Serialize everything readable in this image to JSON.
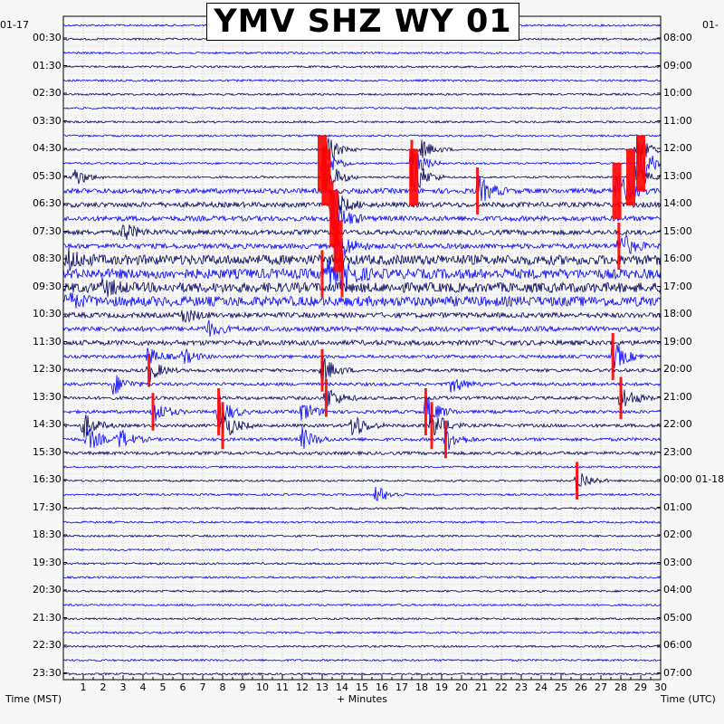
{
  "chart_data": {
    "type": "line",
    "title": "YMV SHZ WY 01",
    "date_left": "01-17",
    "date_right_top": "01-",
    "date_rollover": "01-18",
    "xlabel_left": "Time (MST)",
    "xlabel_center": "+ Minutes",
    "xlabel_right": "Time (UTC)",
    "xlim": [
      0,
      30
    ],
    "x_ticks": [
      "1",
      "2",
      "3",
      "4",
      "5",
      "6",
      "7",
      "8",
      "9",
      "10",
      "11",
      "12",
      "13",
      "14",
      "15",
      "16",
      "17",
      "18",
      "19",
      "20",
      "21",
      "22",
      "23",
      "24",
      "25",
      "26",
      "27",
      "28",
      "29",
      "30"
    ],
    "rows_per_hour": 2,
    "row_minutes": 30,
    "left_labels": [
      "00:30",
      "01:30",
      "02:30",
      "03:30",
      "04:30",
      "05:30",
      "06:30",
      "07:30",
      "08:30",
      "09:30",
      "10:30",
      "11:30",
      "12:30",
      "13:30",
      "14:30",
      "15:30",
      "16:30",
      "17:30",
      "18:30",
      "19:30",
      "20:30",
      "21:30",
      "22:30",
      "23:30"
    ],
    "right_labels": [
      "08:00",
      "09:00",
      "10:00",
      "11:00",
      "12:00",
      "13:00",
      "14:00",
      "15:00",
      "16:00",
      "17:00",
      "18:00",
      "19:00",
      "20:00",
      "21:00",
      "22:00",
      "23:00",
      "00:00",
      "01:00",
      "02:00",
      "03:00",
      "04:00",
      "05:00",
      "06:00",
      "07:00"
    ],
    "trace_colors": [
      "#0000ff",
      "#00005a"
    ],
    "clip_color": "#ff0000",
    "grid": "dotted",
    "events": [
      {
        "row": 9,
        "minute": 13.2,
        "amp": 0.9
      },
      {
        "row": 9,
        "minute": 18.0,
        "amp": 0.6
      },
      {
        "row": 9,
        "minute": 28.8,
        "amp": 1.0
      },
      {
        "row": 10,
        "minute": 13.0,
        "amp": 1.2,
        "clipped": true
      },
      {
        "row": 10,
        "minute": 17.5,
        "amp": 1.0,
        "clipped": true
      },
      {
        "row": 10,
        "minute": 29.0,
        "amp": 1.2,
        "clipped": true
      },
      {
        "row": 11,
        "minute": 0.5,
        "amp": 0.7
      },
      {
        "row": 11,
        "minute": 13.2,
        "amp": 1.2,
        "clipped": true
      },
      {
        "row": 11,
        "minute": 17.6,
        "amp": 1.2,
        "clipped": true
      },
      {
        "row": 11,
        "minute": 28.5,
        "amp": 1.2,
        "clipped": true
      },
      {
        "row": 12,
        "minute": 20.8,
        "amp": 1.0,
        "clipped": true
      },
      {
        "row": 12,
        "minute": 27.8,
        "amp": 1.2,
        "clipped": true
      },
      {
        "row": 13,
        "minute": 13.5,
        "amp": 1.0,
        "clipped": true
      },
      {
        "row": 14,
        "minute": 13.6,
        "amp": 1.2,
        "clipped": true
      },
      {
        "row": 15,
        "minute": 3.0,
        "amp": 0.6
      },
      {
        "row": 16,
        "minute": 27.9,
        "amp": 1.0,
        "clipped": true
      },
      {
        "row": 16,
        "minute": 13.8,
        "amp": 1.1,
        "clipped": true
      },
      {
        "row": 17,
        "minute": 0.2,
        "amp": 0.6
      },
      {
        "row": 18,
        "minute": 13.0,
        "amp": 1.0,
        "clipped": true
      },
      {
        "row": 18,
        "minute": 14.0,
        "amp": 1.0,
        "clipped": true
      },
      {
        "row": 19,
        "minute": 2.0,
        "amp": 0.5
      },
      {
        "row": 20,
        "minute": 0.1,
        "amp": 0.5
      },
      {
        "row": 21,
        "minute": 6.0,
        "amp": 0.5
      },
      {
        "row": 22,
        "minute": 7.2,
        "amp": 0.5
      },
      {
        "row": 24,
        "minute": 4.2,
        "amp": 0.6
      },
      {
        "row": 24,
        "minute": 6.0,
        "amp": 0.5
      },
      {
        "row": 24,
        "minute": 27.6,
        "amp": 1.0,
        "clipped": true
      },
      {
        "row": 25,
        "minute": 13.0,
        "amp": 0.9,
        "clipped": true
      },
      {
        "row": 25,
        "minute": 4.3,
        "amp": 0.7,
        "clipped": true
      },
      {
        "row": 26,
        "minute": 2.5,
        "amp": 0.7
      },
      {
        "row": 26,
        "minute": 19.5,
        "amp": 0.6
      },
      {
        "row": 27,
        "minute": 13.2,
        "amp": 0.8,
        "clipped": true
      },
      {
        "row": 27,
        "minute": 28.0,
        "amp": 0.9,
        "clipped": true
      },
      {
        "row": 28,
        "minute": 4.5,
        "amp": 0.8,
        "clipped": true
      },
      {
        "row": 28,
        "minute": 7.8,
        "amp": 1.0,
        "clipped": true
      },
      {
        "row": 28,
        "minute": 18.2,
        "amp": 1.0,
        "clipped": true
      },
      {
        "row": 28,
        "minute": 12.0,
        "amp": 0.7
      },
      {
        "row": 29,
        "minute": 1.0,
        "amp": 0.8
      },
      {
        "row": 29,
        "minute": 8.0,
        "amp": 1.0,
        "clipped": true
      },
      {
        "row": 29,
        "minute": 14.5,
        "amp": 0.9
      },
      {
        "row": 29,
        "minute": 18.5,
        "amp": 1.0,
        "clipped": true
      },
      {
        "row": 30,
        "minute": 1.2,
        "amp": 0.8
      },
      {
        "row": 30,
        "minute": 2.8,
        "amp": 0.7
      },
      {
        "row": 30,
        "minute": 12.0,
        "amp": 0.7
      },
      {
        "row": 30,
        "minute": 19.2,
        "amp": 0.8,
        "clipped": true
      },
      {
        "row": 33,
        "minute": 25.8,
        "amp": 0.8,
        "clipped": true
      },
      {
        "row": 34,
        "minute": 15.7,
        "amp": 0.6
      }
    ]
  }
}
